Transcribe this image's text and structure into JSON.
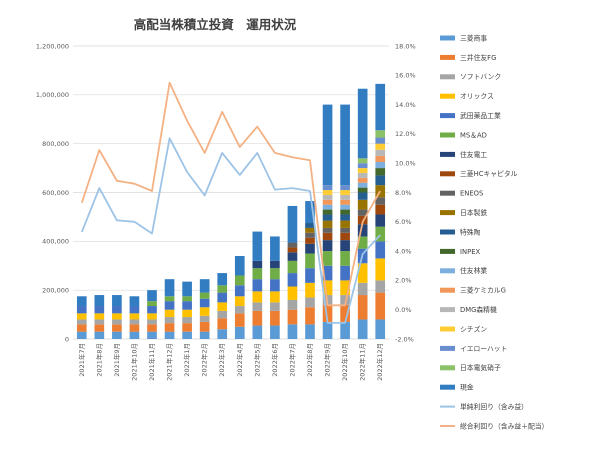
{
  "chart_data": {
    "type": "bar",
    "title": "高配当株積立投資　運用状況",
    "categories": [
      "2021年7月",
      "2021年8月",
      "2021年9月",
      "2021年10月",
      "2021年11月",
      "2021年12月",
      "2022年1月",
      "2022年2月",
      "2022年3月",
      "2022年4月",
      "2022年5月",
      "2022年6月",
      "2022年7月",
      "2022年8月",
      "2022年9月",
      "2022年10月",
      "2022年11月",
      "2022年12月"
    ],
    "ylim": [
      0,
      1200000
    ],
    "y2lim": [
      -2.0,
      18.0
    ],
    "yticks": [
      "0",
      "200,000",
      "400,000",
      "600,000",
      "800,000",
      "1,000,000",
      "1,200,000"
    ],
    "y2ticks": [
      "-2.0%",
      "0.0%",
      "2.0%",
      "4.0%",
      "6.0%",
      "8.0%",
      "10.0%",
      "12.0%",
      "14.0%",
      "16.0%",
      "18.0%"
    ],
    "legend_position": "right",
    "grid": true,
    "series": [
      {
        "name": "三菱商事",
        "kind": "bar",
        "color": "#5b9bd5",
        "values": [
          30000,
          30000,
          30000,
          30000,
          30000,
          30000,
          30000,
          30000,
          40000,
          50000,
          55000,
          55000,
          60000,
          60000,
          70000,
          70000,
          80000,
          80000
        ]
      },
      {
        "name": "三井住友FG",
        "kind": "bar",
        "color": "#ed7d31",
        "values": [
          30000,
          30000,
          30000,
          30000,
          30000,
          35000,
          35000,
          40000,
          45000,
          55000,
          60000,
          60000,
          60000,
          70000,
          70000,
          70000,
          100000,
          110000
        ]
      },
      {
        "name": "ソフトバンク",
        "kind": "bar",
        "color": "#a5a5a5",
        "values": [
          20000,
          20000,
          20000,
          20000,
          20000,
          25000,
          25000,
          25000,
          30000,
          30000,
          35000,
          35000,
          40000,
          40000,
          40000,
          40000,
          50000,
          50000
        ]
      },
      {
        "name": "オリックス",
        "kind": "bar",
        "color": "#ffc000",
        "values": [
          25000,
          25000,
          25000,
          25000,
          25000,
          30000,
          30000,
          35000,
          35000,
          40000,
          45000,
          45000,
          55000,
          60000,
          60000,
          60000,
          80000,
          90000
        ]
      },
      {
        "name": "武田薬品工業",
        "kind": "bar",
        "color": "#4472c4",
        "values": [
          30000,
          30000,
          30000,
          30000,
          30000,
          35000,
          35000,
          35000,
          40000,
          45000,
          50000,
          50000,
          55000,
          60000,
          60000,
          60000,
          60000,
          70000
        ]
      },
      {
        "name": "MS＆AD",
        "kind": "bar",
        "color": "#70ad47",
        "values": [
          0,
          0,
          0,
          0,
          20000,
          20000,
          20000,
          25000,
          30000,
          40000,
          45000,
          45000,
          50000,
          60000,
          60000,
          60000,
          50000,
          60000
        ]
      },
      {
        "name": "住友電工",
        "kind": "bar",
        "color": "#264478",
        "values": [
          0,
          0,
          0,
          0,
          0,
          0,
          0,
          0,
          0,
          0,
          30000,
          30000,
          35000,
          40000,
          45000,
          45000,
          50000,
          50000
        ]
      },
      {
        "name": "三菱HCキャピタル",
        "kind": "bar",
        "color": "#9e480e",
        "values": [
          0,
          0,
          0,
          0,
          0,
          0,
          0,
          0,
          0,
          0,
          0,
          0,
          20000,
          25000,
          30000,
          30000,
          35000,
          40000
        ]
      },
      {
        "name": "ENEOS",
        "kind": "bar",
        "color": "#636363",
        "values": [
          0,
          0,
          0,
          0,
          0,
          0,
          0,
          0,
          0,
          0,
          0,
          0,
          20000,
          20000,
          20000,
          20000,
          25000,
          30000
        ]
      },
      {
        "name": "日本製鉄",
        "kind": "bar",
        "color": "#997300",
        "values": [
          0,
          0,
          0,
          0,
          0,
          0,
          0,
          0,
          0,
          0,
          0,
          0,
          0,
          20000,
          30000,
          30000,
          40000,
          50000
        ]
      },
      {
        "name": "特殊陶",
        "kind": "bar",
        "color": "#255e91",
        "values": [
          0,
          0,
          0,
          0,
          0,
          0,
          0,
          0,
          0,
          0,
          0,
          0,
          0,
          20000,
          25000,
          25000,
          30000,
          40000
        ]
      },
      {
        "name": "INPEX",
        "kind": "bar",
        "color": "#43682b",
        "values": [
          0,
          0,
          0,
          0,
          0,
          0,
          0,
          0,
          0,
          0,
          0,
          0,
          0,
          0,
          20000,
          20000,
          20000,
          30000
        ]
      },
      {
        "name": "住友林業",
        "kind": "bar",
        "color": "#7cafdd",
        "values": [
          0,
          0,
          0,
          0,
          0,
          0,
          0,
          0,
          0,
          0,
          0,
          0,
          0,
          0,
          20000,
          20000,
          20000,
          25000
        ]
      },
      {
        "name": "三菱ケミカルG",
        "kind": "bar",
        "color": "#f1975a",
        "values": [
          0,
          0,
          0,
          0,
          0,
          0,
          0,
          0,
          0,
          0,
          0,
          0,
          0,
          0,
          20000,
          20000,
          20000,
          25000
        ]
      },
      {
        "name": "DMG森精機",
        "kind": "bar",
        "color": "#b7b7b7",
        "values": [
          0,
          0,
          0,
          0,
          0,
          0,
          0,
          0,
          0,
          0,
          0,
          0,
          0,
          0,
          20000,
          20000,
          20000,
          25000
        ]
      },
      {
        "name": "シチズン",
        "kind": "bar",
        "color": "#ffcd33",
        "values": [
          0,
          0,
          0,
          0,
          0,
          0,
          0,
          0,
          0,
          0,
          0,
          0,
          0,
          0,
          20000,
          20000,
          20000,
          25000
        ]
      },
      {
        "name": "イエローハット",
        "kind": "bar",
        "color": "#698ed0",
        "values": [
          0,
          0,
          0,
          0,
          0,
          0,
          0,
          0,
          0,
          0,
          0,
          0,
          0,
          0,
          20000,
          20000,
          20000,
          25000
        ]
      },
      {
        "name": "日本電気硝子",
        "kind": "bar",
        "color": "#8cc168",
        "values": [
          0,
          0,
          0,
          0,
          0,
          0,
          0,
          0,
          0,
          0,
          0,
          0,
          0,
          0,
          0,
          0,
          20000,
          30000
        ]
      },
      {
        "name": "現金",
        "kind": "bar",
        "color": "#327dc2",
        "values": [
          40000,
          45000,
          45000,
          40000,
          45000,
          70000,
          60000,
          55000,
          50000,
          80000,
          120000,
          100000,
          150000,
          90000,
          330000,
          330000,
          285000,
          190000
        ]
      },
      {
        "name": "単純利回り（含み益）",
        "kind": "line",
        "axis": "right",
        "color": "#9dc3e6",
        "values": [
          5.3,
          8.3,
          6.1,
          6.0,
          5.2,
          11.7,
          9.4,
          7.8,
          10.7,
          9.2,
          10.7,
          8.2,
          8.3,
          8.1,
          -0.9,
          -0.9,
          3.8,
          5.1
        ]
      },
      {
        "name": "総合利回り（含み益＋配当）",
        "kind": "line",
        "axis": "right",
        "color": "#f4b183",
        "values": [
          7.3,
          10.9,
          8.8,
          8.6,
          8.1,
          15.5,
          12.9,
          10.7,
          13.5,
          11.1,
          12.5,
          10.7,
          10.4,
          10.2,
          0.3,
          0.3,
          6.0,
          8.1
        ]
      }
    ]
  }
}
